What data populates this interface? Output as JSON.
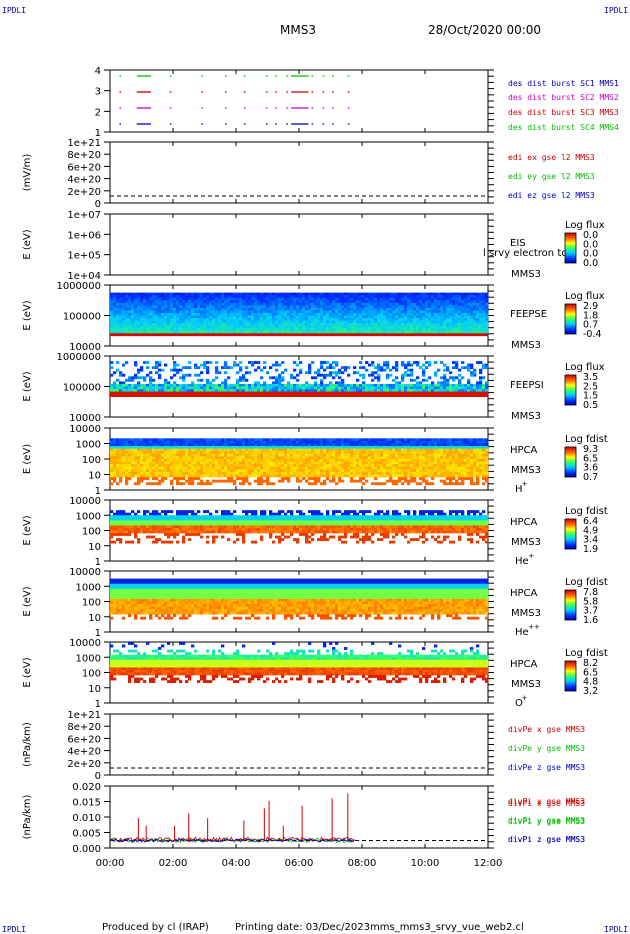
{
  "header": {
    "corner_mark": "IPDLI",
    "spacecraft": "MMS3",
    "date": "28/Oct/2020 00:00"
  },
  "footer": {
    "produced_by": "Produced by cl (IRAP)",
    "printing_date": "Printing date: 03/Dec/2023",
    "script_name": "mms_mms3_srvy_vue_web2.cl"
  },
  "colors": {
    "red": "#cc0000",
    "green": "#00c000",
    "blue": "#0000cc",
    "magenta": "#cc00cc",
    "darkred": "#990000"
  },
  "chart_data": {
    "type": "line",
    "x_axis": {
      "ticks": [
        "00:00",
        "02:00",
        "04:00",
        "06:00",
        "08:00",
        "10:00",
        "12:00"
      ],
      "range_hours": [
        0,
        12
      ]
    },
    "panels": [
      {
        "id": "burst",
        "type": "scatter",
        "yticks": [
          "4",
          "3",
          "2",
          "1"
        ],
        "legend": [
          {
            "text": "des dist burst SC1 MMS1",
            "color": "#0000cc"
          },
          {
            "text": "des dist burst SC2 MMS2",
            "color": "#cc00cc"
          },
          {
            "text": "des dist burst SC3 MMS3",
            "color": "#cc0000"
          },
          {
            "text": "des dist burst SC4 MMS4",
            "color": "#00c000"
          }
        ],
        "segments_hours": [
          [
            0.3,
            0.35
          ],
          [
            0.85,
            1.3
          ],
          [
            1.9,
            1.95
          ],
          [
            2.9,
            2.95
          ],
          [
            3.65,
            3.7
          ],
          [
            4.25,
            4.3
          ],
          [
            4.95,
            5.0
          ],
          [
            5.25,
            5.3
          ],
          [
            5.6,
            5.65
          ],
          [
            5.75,
            6.3
          ],
          [
            6.4,
            6.45
          ],
          [
            6.75,
            6.8
          ],
          [
            7.05,
            7.1
          ],
          [
            7.55,
            7.6
          ]
        ]
      },
      {
        "id": "edi",
        "type": "line",
        "ylabel": "(mV/m)",
        "yticks": [
          "1e+21",
          "8e+20",
          "6e+20",
          "4e+20",
          "2e+20",
          "0"
        ],
        "legend": [
          {
            "text": "edi ex gse l2 MMS3",
            "color": "#cc0000"
          },
          {
            "text": "edi ey gse l2 MMS3",
            "color": "#00c000"
          },
          {
            "text": "edi ez gse l2 MMS3",
            "color": "#0000cc"
          }
        ]
      },
      {
        "id": "eis",
        "type": "heatmap",
        "ylabel": "E (eV)",
        "yticks": [
          "1e+07",
          "1e+06",
          "1e+05",
          "1e+04"
        ],
        "instrument": "EIS",
        "subtitle": "l srvy electron to",
        "spacecraft": "MMS3",
        "cbar_title": "Log flux",
        "cbar_ticks": [
          "0.0",
          "0.0",
          "0.0",
          "0.0"
        ]
      },
      {
        "id": "feepse",
        "type": "heatmap",
        "ylabel": "E (eV)",
        "yticks": [
          "1000000",
          "100000",
          "10000"
        ],
        "instrument": "FEEPSE",
        "spacecraft": "MMS3",
        "cbar_title": "Log flux",
        "cbar_ticks": [
          "2.9",
          "1.8",
          "0.7",
          "-0.4"
        ]
      },
      {
        "id": "feepsi",
        "type": "heatmap",
        "ylabel": "E (eV)",
        "yticks": [
          "1000000",
          "100000",
          "10000"
        ],
        "instrument": "FEEPSI",
        "spacecraft": "MMS3",
        "cbar_title": "Log flux",
        "cbar_ticks": [
          "3.5",
          "2.5",
          "1.5",
          "0.5"
        ]
      },
      {
        "id": "hpca_h",
        "type": "heatmap",
        "ylabel": "E (eV)",
        "yticks": [
          "10000",
          "1000",
          "100",
          "10",
          "1"
        ],
        "instrument": "HPCA",
        "spacecraft": "MMS3",
        "species": "H",
        "charge": "+",
        "cbar_title": "Log fdist",
        "cbar_ticks": [
          "9.3",
          "6.5",
          "3.6",
          "0.7"
        ]
      },
      {
        "id": "hpca_he",
        "type": "heatmap",
        "ylabel": "E (eV)",
        "yticks": [
          "10000",
          "1000",
          "100",
          "10",
          "1"
        ],
        "instrument": "HPCA",
        "spacecraft": "MMS3",
        "species": "He",
        "charge": "+",
        "cbar_title": "Log fdist",
        "cbar_ticks": [
          "6.4",
          "4.9",
          "3.4",
          "1.9"
        ]
      },
      {
        "id": "hpca_he2",
        "type": "heatmap",
        "ylabel": "E (eV)",
        "yticks": [
          "10000",
          "1000",
          "100",
          "10",
          "1"
        ],
        "instrument": "HPCA",
        "spacecraft": "MMS3",
        "species": "He",
        "charge": "++",
        "cbar_title": "Log fdist",
        "cbar_ticks": [
          "7.8",
          "5.8",
          "3.7",
          "1.6"
        ]
      },
      {
        "id": "hpca_o",
        "type": "heatmap",
        "ylabel": "E (eV)",
        "yticks": [
          "10000",
          "1000",
          "100",
          "10",
          "1"
        ],
        "instrument": "HPCA",
        "spacecraft": "MMS3",
        "species": "O",
        "charge": "+",
        "cbar_title": "Log fdist",
        "cbar_ticks": [
          "8.2",
          "6.5",
          "4.8",
          "3.2"
        ]
      },
      {
        "id": "divpe",
        "type": "line",
        "ylabel": "(nPa/km)",
        "yticks": [
          "1e+21",
          "8e+20",
          "6e+20",
          "4e+20",
          "2e+20",
          "0"
        ],
        "legend": [
          {
            "text": "divPe x gse MMS3",
            "color": "#cc0000"
          },
          {
            "text": "divPe y gse MMS3",
            "color": "#00c000"
          },
          {
            "text": "divPe z gse MMS3",
            "color": "#0000cc"
          }
        ]
      },
      {
        "id": "divpi",
        "type": "line",
        "ylabel": "(nPa/km)",
        "yticks": [
          "0.020",
          "0.015",
          "0.010",
          "0.005",
          "0.000"
        ],
        "ylim": [
          -0.003,
          0.022
        ],
        "legend": [
          {
            "text": "divPi x gse MMS3",
            "color": "#cc0000"
          },
          {
            "text": "divPi y gse MMS3",
            "color": "#00c000"
          },
          {
            "text": "divPi z gse MMS3",
            "color": "#0000cc"
          }
        ],
        "data_end_hour": 7.8,
        "spikes_x": [
          [
            0.9,
            0.009
          ],
          [
            1.15,
            0.006
          ],
          [
            2.05,
            0.006
          ],
          [
            2.5,
            0.011
          ],
          [
            3.1,
            0.009
          ],
          [
            4.25,
            0.008
          ],
          [
            4.9,
            0.013
          ],
          [
            5.05,
            0.016
          ],
          [
            5.5,
            0.006
          ],
          [
            6.1,
            0.014
          ],
          [
            7.05,
            0.017
          ],
          [
            7.55,
            0.019
          ]
        ]
      }
    ]
  }
}
